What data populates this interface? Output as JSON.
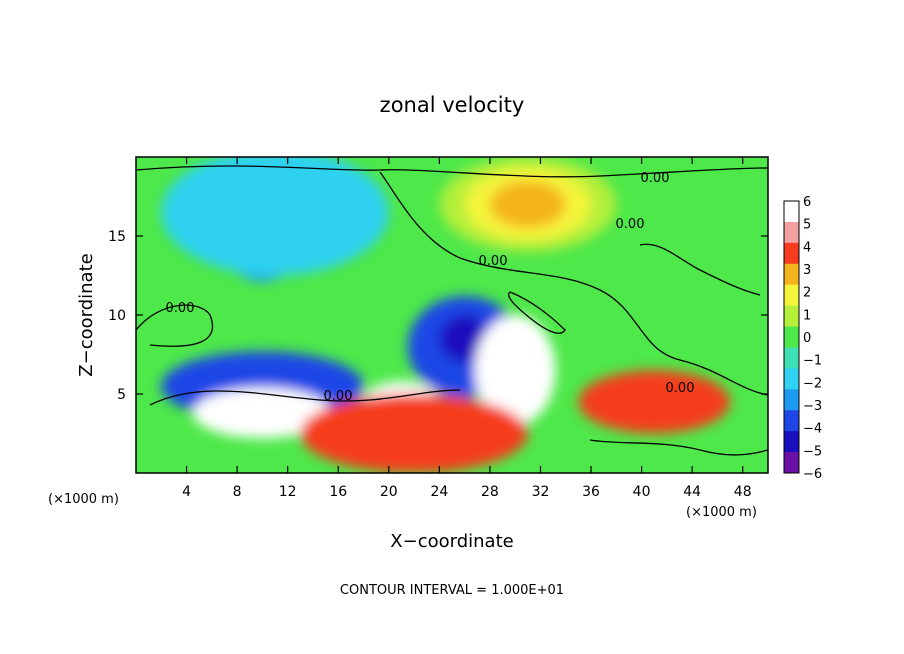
{
  "chart_data": {
    "type": "heatmap",
    "title": "zonal velocity",
    "xlabel": "X−coordinate",
    "ylabel": "Z−coordinate",
    "x_unit_left": "(×1000 m)",
    "x_unit_right": "(×1000 m)",
    "footer": "CONTOUR INTERVAL = 1.000E+01",
    "xlim": [
      0,
      50
    ],
    "ylim": [
      0,
      20
    ],
    "x_ticks": [
      4,
      8,
      12,
      16,
      20,
      24,
      28,
      32,
      36,
      40,
      44,
      48
    ],
    "y_ticks": [
      5,
      10,
      15
    ],
    "contour_label": "0.00",
    "colorbar": {
      "ticks": [
        "6",
        "5",
        "4",
        "3",
        "2",
        "1",
        "0",
        "−1",
        "−2",
        "−3",
        "−4",
        "−5",
        "−6"
      ],
      "levels": [
        -6,
        -5,
        -4,
        -3,
        -2,
        -1,
        0,
        1,
        2,
        3,
        4,
        5,
        6
      ],
      "colors": [
        "#6a0fa6",
        "#1a0fbe",
        "#1e46e6",
        "#1e9bf0",
        "#2fd2f0",
        "#3fe0b4",
        "#4ee84a",
        "#b4ef3a",
        "#f4f53a",
        "#f5b41e",
        "#f53c1e",
        "#f5a0a0",
        "#ffffff"
      ]
    },
    "features": [
      {
        "kind": "ellipse",
        "x": 10,
        "z": 14.5,
        "rx": 3,
        "rz": 2.4,
        "level": -3
      },
      {
        "kind": "ellipse",
        "x": 11,
        "z": 16.5,
        "rx": 9,
        "rz": 4,
        "level": -2
      },
      {
        "kind": "ellipse",
        "x": 31,
        "z": 17,
        "rx": 7,
        "rz": 3,
        "level": 1
      },
      {
        "kind": "ellipse",
        "x": 31,
        "z": 17,
        "rx": 5,
        "rz": 2.3,
        "level": 2
      },
      {
        "kind": "ellipse",
        "x": 31,
        "z": 17,
        "rx": 3,
        "rz": 1.5,
        "level": 3
      },
      {
        "kind": "ellipse",
        "x": 10,
        "z": 5.5,
        "rx": 8,
        "rz": 2.2,
        "level": -4
      },
      {
        "kind": "ellipse",
        "x": 26,
        "z": 8,
        "rx": 4.5,
        "rz": 3.2,
        "level": -4
      },
      {
        "kind": "ellipse",
        "x": 26,
        "z": 8.5,
        "rx": 2,
        "rz": 1.5,
        "level": -5
      },
      {
        "kind": "ellipse",
        "x": 10,
        "z": 3.8,
        "rx": 5.5,
        "rz": 1.6,
        "level": 6
      },
      {
        "kind": "ellipse",
        "x": 21,
        "z": 4,
        "rx": 3.5,
        "rz": 1.8,
        "level": 6
      },
      {
        "kind": "ellipse",
        "x": 30,
        "z": 6.5,
        "rx": 3.2,
        "rz": 3.5,
        "level": 6
      },
      {
        "kind": "ellipse",
        "x": 42,
        "z": 4.5,
        "rx": 5,
        "rz": 1.4,
        "level": 6
      },
      {
        "kind": "ellipse",
        "x": 22,
        "z": 2.5,
        "rx": 9,
        "rz": 2.5,
        "level": 4
      },
      {
        "kind": "ellipse",
        "x": 41,
        "z": 4.5,
        "rx": 6,
        "rz": 2,
        "level": 4
      }
    ]
  }
}
